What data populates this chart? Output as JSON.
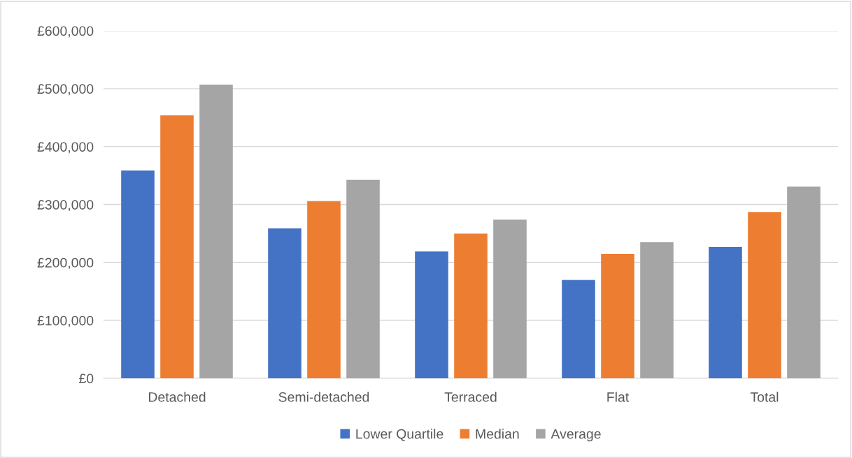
{
  "chart_data": {
    "type": "bar",
    "categories": [
      "Detached",
      "Semi-detached",
      "Terraced",
      "Flat",
      "Total"
    ],
    "series": [
      {
        "name": "Lower Quartile",
        "color": "#4472c4",
        "values": [
          359000,
          259000,
          219000,
          170000,
          227000
        ]
      },
      {
        "name": "Median",
        "color": "#ed7d31",
        "values": [
          454000,
          306000,
          250000,
          215000,
          287000
        ]
      },
      {
        "name": "Average",
        "color": "#a5a5a5",
        "values": [
          507000,
          343000,
          274000,
          235000,
          331000
        ]
      }
    ],
    "ylim": [
      0,
      600000
    ],
    "yticks": [
      {
        "value": 0,
        "label": "£0"
      },
      {
        "value": 100000,
        "label": "£100,000"
      },
      {
        "value": 200000,
        "label": "£200,000"
      },
      {
        "value": 300000,
        "label": "£300,000"
      },
      {
        "value": 400000,
        "label": "£400,000"
      },
      {
        "value": 500000,
        "label": "£500,000"
      },
      {
        "value": 600000,
        "label": "£600,000"
      }
    ],
    "grid": "y",
    "legend": "bottom"
  }
}
